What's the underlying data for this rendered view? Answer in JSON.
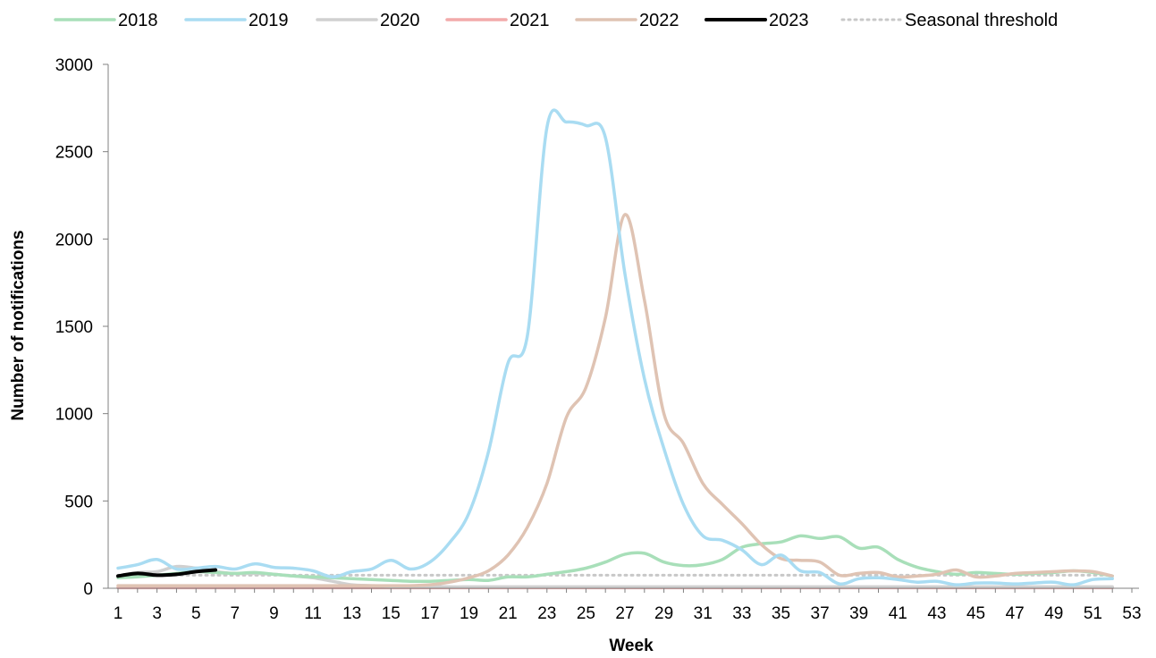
{
  "chart_data": {
    "type": "line",
    "title": "",
    "xlabel": "Week",
    "ylabel": "Number of notifications",
    "xlim": [
      1,
      53
    ],
    "ylim": [
      0,
      3000
    ],
    "x_ticks": [
      1,
      3,
      5,
      7,
      9,
      11,
      13,
      15,
      17,
      19,
      21,
      23,
      25,
      27,
      29,
      31,
      33,
      35,
      37,
      39,
      41,
      43,
      45,
      47,
      49,
      51,
      53
    ],
    "y_ticks": [
      0,
      500,
      1000,
      1500,
      2000,
      2500,
      3000
    ],
    "grid": false,
    "legend_position": "top",
    "series": [
      {
        "name": "2018",
        "color": "#a8dfb9",
        "x": [
          1,
          2,
          3,
          4,
          5,
          6,
          7,
          8,
          9,
          10,
          11,
          12,
          13,
          14,
          15,
          16,
          17,
          18,
          19,
          20,
          21,
          22,
          23,
          24,
          25,
          26,
          27,
          28,
          29,
          30,
          31,
          32,
          33,
          34,
          35,
          36,
          37,
          38,
          39,
          40,
          41,
          42,
          43,
          44,
          45,
          46,
          47,
          48,
          49,
          50,
          51,
          52
        ],
        "values": [
          60,
          65,
          75,
          85,
          95,
          90,
          85,
          90,
          80,
          70,
          65,
          60,
          55,
          50,
          45,
          40,
          40,
          45,
          50,
          45,
          65,
          65,
          80,
          95,
          115,
          150,
          195,
          200,
          150,
          130,
          135,
          165,
          235,
          255,
          265,
          300,
          285,
          295,
          230,
          235,
          165,
          120,
          95,
          80,
          90,
          85,
          80,
          85,
          90,
          100,
          90,
          70
        ]
      },
      {
        "name": "2019",
        "color": "#a9dcf2",
        "x": [
          1,
          2,
          3,
          4,
          5,
          6,
          7,
          8,
          9,
          10,
          11,
          12,
          13,
          14,
          15,
          16,
          17,
          18,
          19,
          20,
          21,
          22,
          23,
          24,
          25,
          26,
          27,
          28,
          29,
          30,
          31,
          32,
          33,
          34,
          35,
          36,
          37,
          38,
          39,
          40,
          41,
          42,
          43,
          44,
          45,
          46,
          47,
          48,
          49,
          50,
          51,
          52
        ],
        "values": [
          115,
          135,
          165,
          110,
          115,
          125,
          110,
          140,
          120,
          115,
          100,
          65,
          95,
          110,
          160,
          110,
          150,
          260,
          430,
          780,
          1290,
          1450,
          2640,
          2670,
          2650,
          2580,
          1800,
          1200,
          800,
          480,
          300,
          275,
          220,
          135,
          190,
          100,
          90,
          25,
          55,
          60,
          50,
          35,
          40,
          20,
          30,
          30,
          25,
          30,
          35,
          20,
          50,
          55
        ]
      },
      {
        "name": "2020",
        "color": "#d0d0d0",
        "x": [
          1,
          2,
          3,
          4,
          5,
          6,
          7,
          8,
          9,
          10,
          11,
          12,
          13,
          14,
          15,
          16,
          17,
          18,
          19,
          20,
          21,
          22,
          23,
          24,
          25,
          26,
          27,
          28,
          29,
          30,
          31,
          32,
          33,
          34,
          35,
          36,
          37,
          38,
          39,
          40,
          41,
          42,
          43,
          44,
          45,
          46,
          47,
          48,
          49,
          50,
          51,
          52
        ],
        "values": [
          70,
          90,
          95,
          125,
          115,
          95,
          85,
          85,
          80,
          70,
          60,
          40,
          20,
          15,
          12,
          10,
          10,
          8,
          8,
          8,
          8,
          8,
          8,
          8,
          8,
          8,
          8,
          8,
          8,
          8,
          8,
          8,
          8,
          8,
          8,
          8,
          8,
          8,
          8,
          8,
          8,
          8,
          8,
          8,
          8,
          8,
          8,
          8,
          8,
          8,
          8,
          8
        ]
      },
      {
        "name": "2021",
        "color": "#f2aaaa",
        "x": [
          1,
          2,
          3,
          4,
          5,
          6,
          7,
          8,
          9,
          10,
          11,
          12,
          13,
          14,
          15,
          16,
          17,
          18,
          19,
          20,
          21,
          22,
          23,
          24,
          25,
          26,
          27,
          28,
          29,
          30,
          31,
          32,
          33,
          34,
          35,
          36,
          37,
          38,
          39,
          40,
          41,
          42,
          43,
          44,
          45,
          46,
          47,
          48,
          49,
          50,
          51,
          52
        ],
        "values": [
          3,
          3,
          3,
          3,
          3,
          3,
          3,
          3,
          3,
          3,
          3,
          3,
          3,
          3,
          3,
          3,
          3,
          3,
          3,
          3,
          3,
          3,
          3,
          3,
          3,
          3,
          3,
          3,
          3,
          3,
          3,
          3,
          3,
          3,
          3,
          3,
          3,
          3,
          3,
          3,
          3,
          3,
          3,
          3,
          3,
          3,
          3,
          3,
          3,
          3,
          3,
          3
        ]
      },
      {
        "name": "2022",
        "color": "#dfc3b3",
        "x": [
          1,
          2,
          3,
          4,
          5,
          6,
          7,
          8,
          9,
          10,
          11,
          12,
          13,
          14,
          15,
          16,
          17,
          18,
          19,
          20,
          21,
          22,
          23,
          24,
          25,
          26,
          27,
          28,
          29,
          30,
          31,
          32,
          33,
          34,
          35,
          36,
          37,
          38,
          39,
          40,
          41,
          42,
          43,
          44,
          45,
          46,
          47,
          48,
          49,
          50,
          51,
          52
        ],
        "values": [
          15,
          15,
          15,
          15,
          15,
          15,
          15,
          15,
          15,
          15,
          15,
          15,
          15,
          15,
          15,
          15,
          20,
          35,
          60,
          100,
          190,
          350,
          600,
          980,
          1150,
          1550,
          2140,
          1650,
          1000,
          830,
          600,
          480,
          370,
          250,
          170,
          160,
          150,
          75,
          85,
          90,
          65,
          70,
          80,
          105,
          65,
          70,
          85,
          90,
          95,
          100,
          95,
          70
        ]
      },
      {
        "name": "2023",
        "color": "#000000",
        "x": [
          1,
          2,
          3,
          4,
          5,
          6
        ],
        "values": [
          70,
          85,
          75,
          80,
          95,
          105
        ]
      },
      {
        "name": "Seasonal threshold",
        "color": "#c8c8c8",
        "dotted": true,
        "x": [
          1,
          52
        ],
        "values": [
          75,
          75
        ]
      }
    ]
  }
}
